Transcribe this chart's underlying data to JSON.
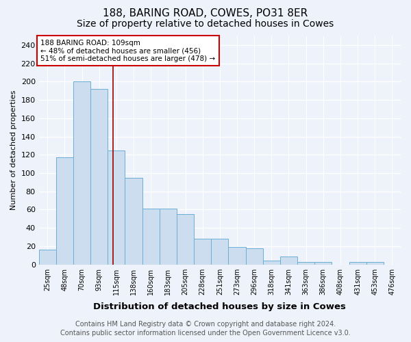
{
  "title1": "188, BARING ROAD, COWES, PO31 8ER",
  "title2": "Size of property relative to detached houses in Cowes",
  "xlabel": "Distribution of detached houses by size in Cowes",
  "ylabel": "Number of detached properties",
  "footer1": "Contains HM Land Registry data © Crown copyright and database right 2024.",
  "footer2": "Contains public sector information licensed under the Open Government Licence v3.0.",
  "annotation_line1": "188 BARING ROAD: 109sqm",
  "annotation_line2": "← 48% of detached houses are smaller (456)",
  "annotation_line3": "51% of semi-detached houses are larger (478) →",
  "bar_labels": [
    "25sqm",
    "48sqm",
    "70sqm",
    "93sqm",
    "115sqm",
    "138sqm",
    "160sqm",
    "183sqm",
    "205sqm",
    "228sqm",
    "251sqm",
    "273sqm",
    "296sqm",
    "318sqm",
    "341sqm",
    "363sqm",
    "386sqm",
    "408sqm",
    "431sqm",
    "453sqm",
    "476sqm"
  ],
  "bar_values": [
    16,
    117,
    200,
    192,
    125,
    95,
    61,
    61,
    55,
    28,
    28,
    19,
    18,
    4,
    9,
    3,
    3,
    0,
    3,
    3
  ],
  "bar_color": "#CCDDF0",
  "bar_edge_color": "#6BAED6",
  "red_line_x": 3.82,
  "ylim": [
    0,
    250
  ],
  "yticks": [
    0,
    20,
    40,
    60,
    80,
    100,
    120,
    140,
    160,
    180,
    200,
    220,
    240
  ],
  "bg_color": "#EEF2FA",
  "annotation_box_color": "white",
  "annotation_box_edge": "#CC0000",
  "grid_color": "#FFFFFF",
  "title_fontsize": 11,
  "subtitle_fontsize": 10,
  "footer_fontsize": 7
}
